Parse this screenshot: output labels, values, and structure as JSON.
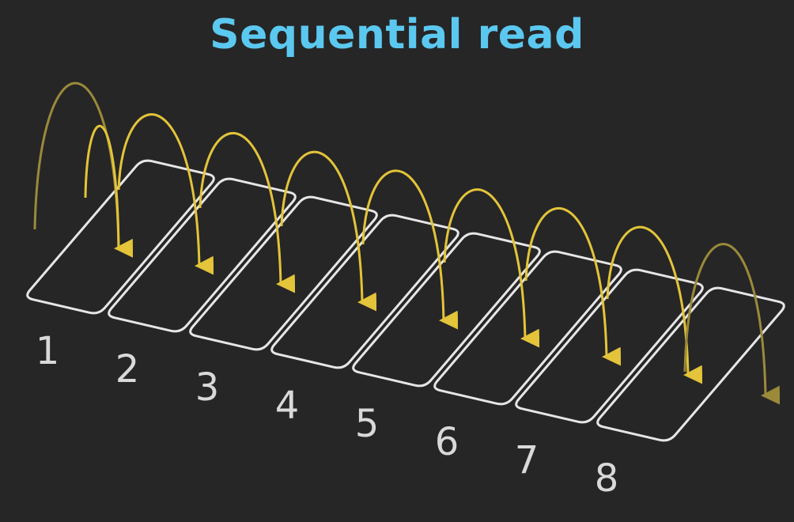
{
  "title": "Sequential read",
  "blocks": [
    {
      "label": "1"
    },
    {
      "label": "2"
    },
    {
      "label": "3"
    },
    {
      "label": "4"
    },
    {
      "label": "5"
    },
    {
      "label": "6"
    },
    {
      "label": "7"
    },
    {
      "label": "8"
    }
  ],
  "colors": {
    "background": "#262626",
    "title": "#5bc8f0",
    "block_outline": "#e6e6e6",
    "label": "#d9d9d9",
    "arrow": "#e3c43a",
    "arrow_faded": "#9a8a3a"
  }
}
